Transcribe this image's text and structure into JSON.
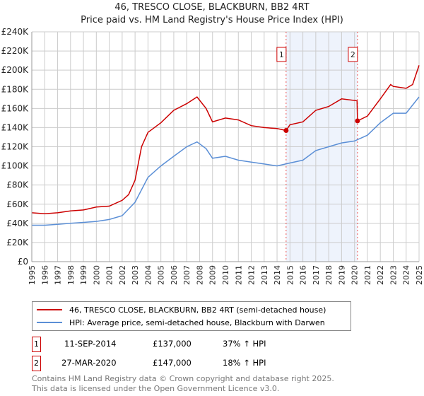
{
  "chart_data": {
    "type": "line",
    "title": "46, TRESCO CLOSE, BLACKBURN, BB2 4RT",
    "subtitle": "Price paid vs. HM Land Registry's House Price Index (HPI)",
    "xlim": [
      1995,
      2025
    ],
    "ylim": [
      0,
      240000
    ],
    "yticks": [
      0,
      20000,
      40000,
      60000,
      80000,
      100000,
      120000,
      140000,
      160000,
      180000,
      200000,
      220000,
      240000
    ],
    "ytick_labels": [
      "£0",
      "£20K",
      "£40K",
      "£60K",
      "£80K",
      "£100K",
      "£120K",
      "£140K",
      "£160K",
      "£180K",
      "£200K",
      "£220K",
      "£240K"
    ],
    "xticks": [
      1995,
      1996,
      1997,
      1998,
      1999,
      2000,
      2001,
      2002,
      2003,
      2004,
      2005,
      2006,
      2007,
      2008,
      2009,
      2010,
      2011,
      2012,
      2013,
      2014,
      2015,
      2016,
      2017,
      2018,
      2019,
      2020,
      2021,
      2022,
      2023,
      2024,
      2025
    ],
    "grid": true,
    "shaded_range": [
      2014.7,
      2020.23
    ],
    "series": [
      {
        "name": "46, TRESCO CLOSE, BLACKBURN, BB2 4RT (semi-detached house)",
        "color": "#cc0000",
        "x": [
          1995,
          1996,
          1997,
          1998,
          1999,
          2000,
          2001,
          2002,
          2002.5,
          2003,
          2003.5,
          2004,
          2005,
          2006,
          2007,
          2007.8,
          2008.5,
          2009,
          2010,
          2011,
          2012,
          2013,
          2014,
          2014.7,
          2015,
          2016,
          2017,
          2018,
          2019,
          2020.2,
          2020.23,
          2021,
          2022,
          2022.8,
          2023,
          2024,
          2024.5,
          2025
        ],
        "y": [
          51000,
          50000,
          51000,
          53000,
          54000,
          57000,
          58000,
          64000,
          70000,
          85000,
          120000,
          135000,
          145000,
          158000,
          165000,
          172000,
          160000,
          146000,
          150000,
          148000,
          142000,
          140000,
          139000,
          137000,
          143000,
          146000,
          158000,
          162000,
          170000,
          168000,
          147000,
          152000,
          170000,
          185000,
          183000,
          181000,
          185000,
          205000
        ]
      },
      {
        "name": "HPI: Average price, semi-detached house, Blackburn with Darwen",
        "color": "#5b8fd6",
        "x": [
          1995,
          1996,
          1997,
          1998,
          1999,
          2000,
          2001,
          2002,
          2003,
          2004,
          2005,
          2006,
          2007,
          2007.8,
          2008.5,
          2009,
          2010,
          2011,
          2012,
          2013,
          2014,
          2015,
          2016,
          2017,
          2018,
          2019,
          2020,
          2021,
          2022,
          2023,
          2024,
          2025
        ],
        "y": [
          38000,
          38000,
          39000,
          40000,
          41000,
          42000,
          44000,
          48000,
          62000,
          88000,
          100000,
          110000,
          120000,
          125000,
          118000,
          108000,
          110000,
          106000,
          104000,
          102000,
          100000,
          103000,
          106000,
          116000,
          120000,
          124000,
          126000,
          132000,
          145000,
          155000,
          155000,
          172000
        ]
      }
    ],
    "markers": [
      {
        "label": "1",
        "x": 2014.7
      },
      {
        "label": "2",
        "x": 2020.23
      }
    ]
  },
  "legend": [
    "46, TRESCO CLOSE, BLACKBURN, BB2 4RT (semi-detached house)",
    "HPI: Average price, semi-detached house, Blackburn with Darwen"
  ],
  "transactions": [
    {
      "num": "1",
      "date": "11-SEP-2014",
      "price": "£137,000",
      "hpi": "37% ↑ HPI"
    },
    {
      "num": "2",
      "date": "27-MAR-2020",
      "price": "£147,000",
      "hpi": "18% ↑ HPI"
    }
  ],
  "footer": [
    "Contains HM Land Registry data © Crown copyright and database right 2025.",
    "This data is licensed under the Open Government Licence v3.0."
  ]
}
